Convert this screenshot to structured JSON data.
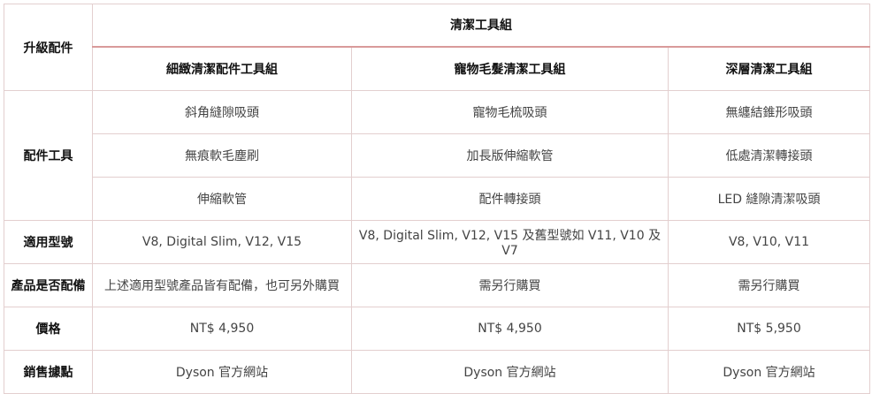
{
  "table": {
    "corner": "升級配件",
    "group_header": "清潔工具組",
    "columns": [
      "細緻清潔配件工具組",
      "寵物毛髮清潔工具組",
      "深層清潔工具組"
    ],
    "tools": {
      "label": "配件工具",
      "rows": [
        [
          "斜角縫隙吸頭",
          "寵物毛梳吸頭",
          "無纏結錐形吸頭"
        ],
        [
          "無痕軟毛塵刷",
          "加長版伸縮軟管",
          "低處清潔轉接頭"
        ],
        [
          "伸縮軟管",
          "配件轉接頭",
          "LED 縫隙清潔吸頭"
        ]
      ]
    },
    "rows": [
      {
        "label": "適用型號",
        "cells": [
          "V8, Digital Slim, V12, V15",
          "V8, Digital Slim, V12, V15  及舊型號如 V11, V10  及 V7",
          "V8, V10, V11"
        ]
      },
      {
        "label": "產品是否配備",
        "cells": [
          "上述適用型號產品皆有配備，也可另外購買",
          "需另行購買",
          "需另行購買"
        ]
      },
      {
        "label": "價格",
        "cells": [
          "NT$ 4,950",
          "NT$ 4,950",
          "NT$ 5,950"
        ]
      },
      {
        "label": "銷售據點",
        "cells": [
          "Dyson 官方網站",
          "Dyson 官方網站",
          "Dyson 官方網站"
        ]
      }
    ]
  }
}
